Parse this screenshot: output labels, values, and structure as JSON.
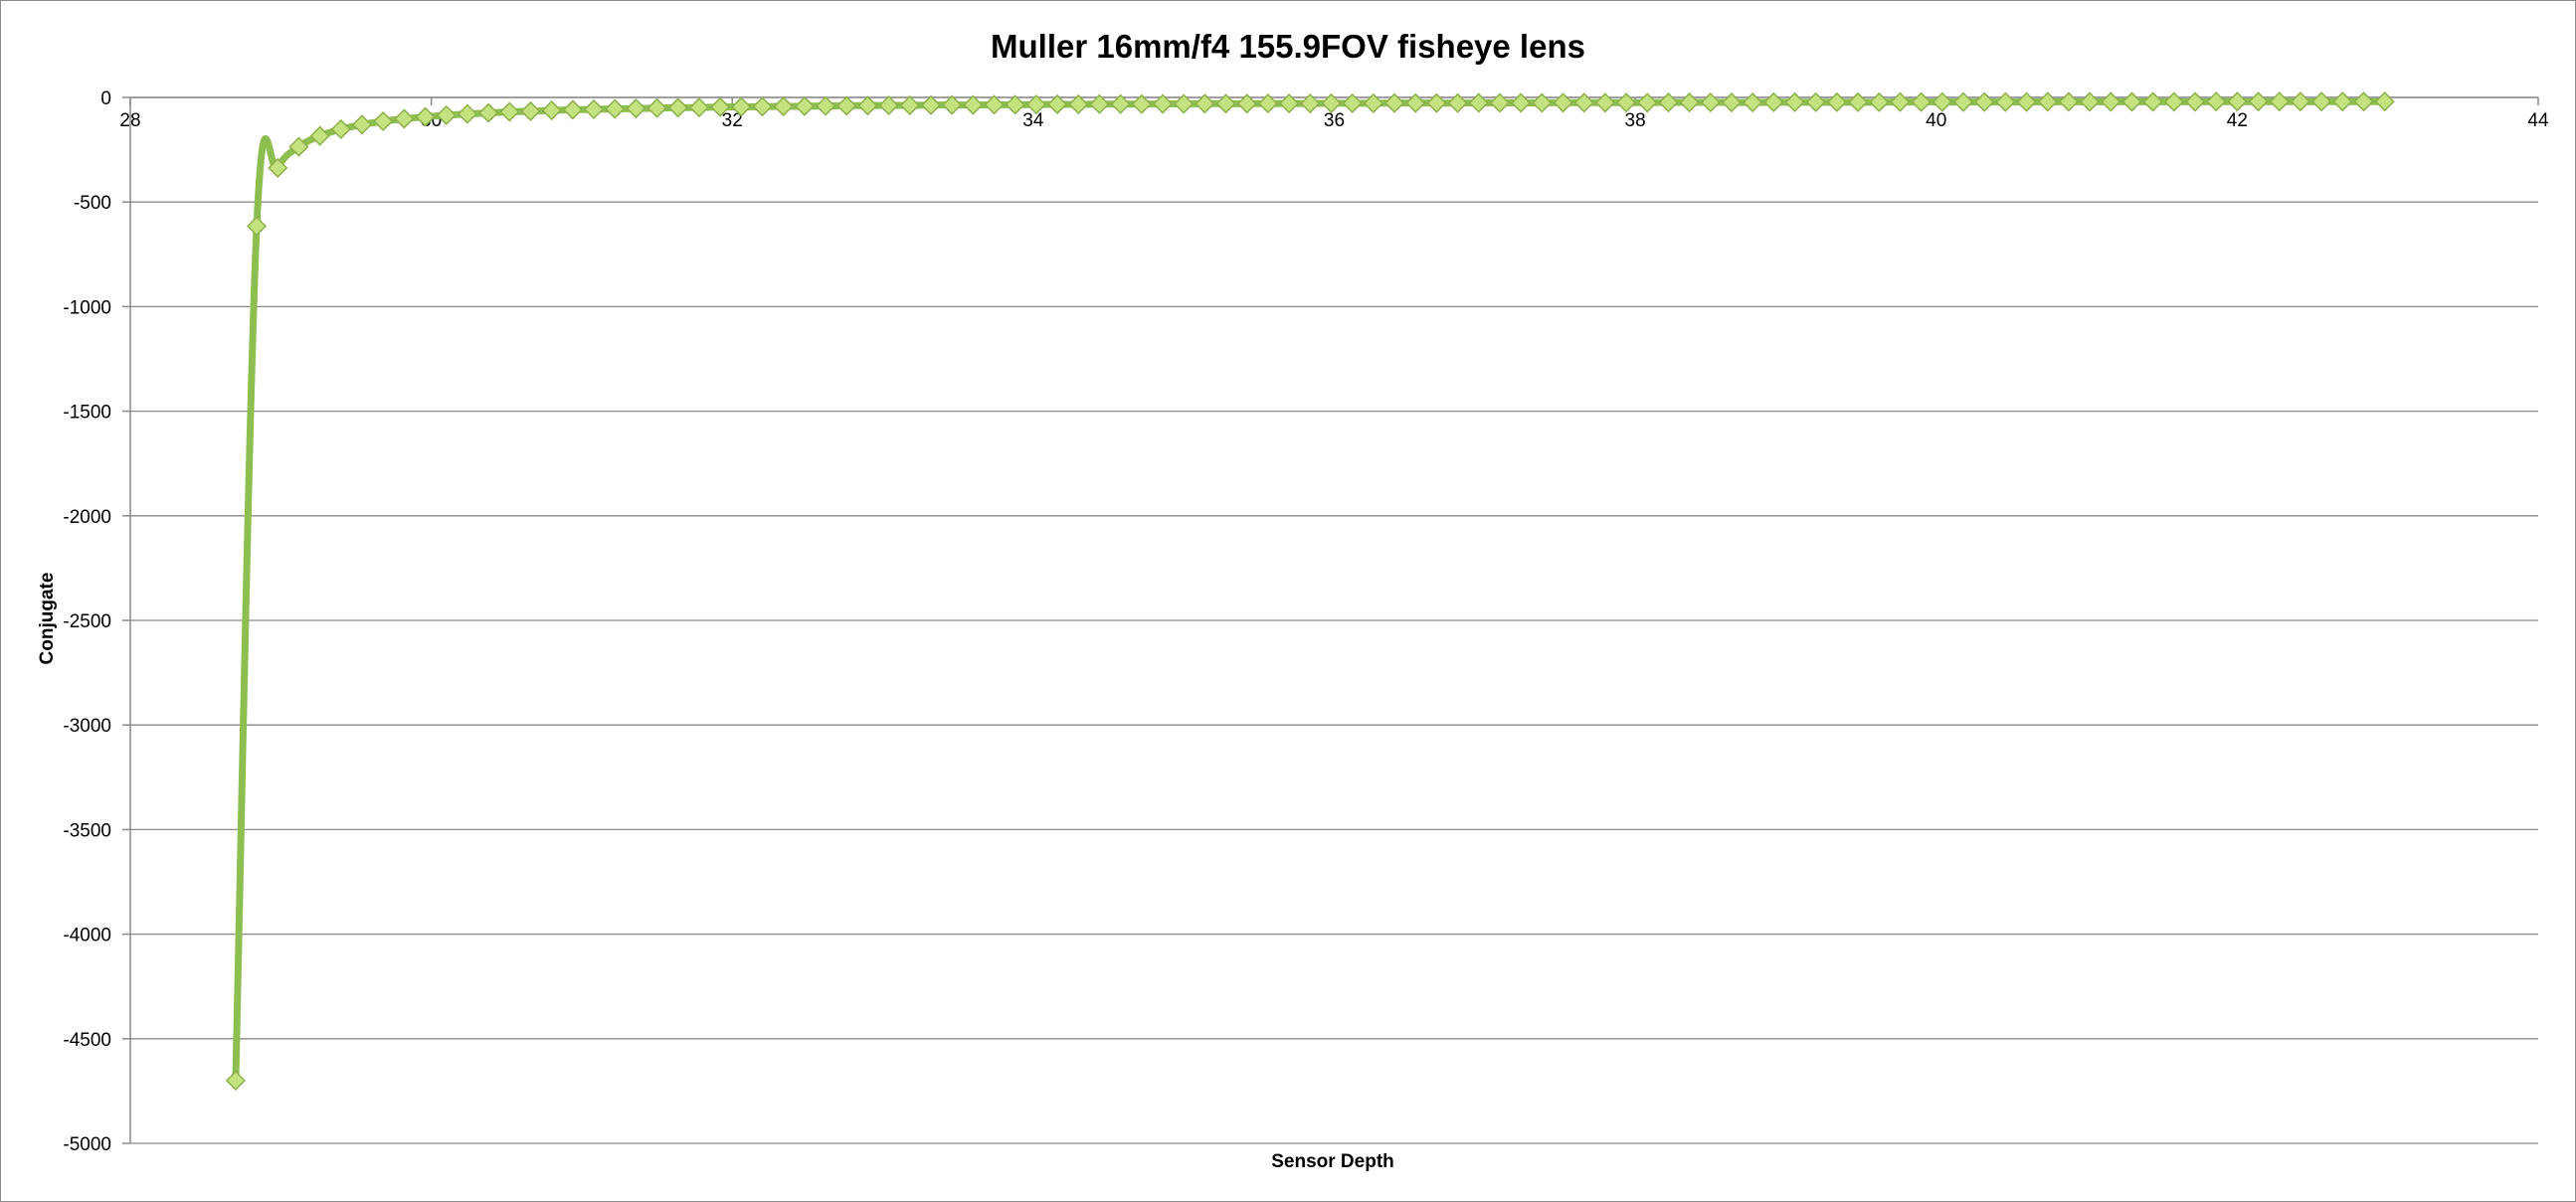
{
  "chart_data": {
    "type": "scatter",
    "title": "Muller 16mm/f4 155.9FOV fisheye lens",
    "xlabel": "Sensor Depth",
    "ylabel": "Conjugate",
    "xlim": [
      28,
      44
    ],
    "ylim": [
      -5000,
      0
    ],
    "xticks": [
      28,
      30,
      32,
      34,
      36,
      38,
      40,
      42,
      44
    ],
    "yticks": [
      0,
      -500,
      -1000,
      -1500,
      -2000,
      -2500,
      -3000,
      -3500,
      -4000,
      -4500,
      -5000
    ],
    "grid": "horizontal",
    "legend": "none",
    "colors": {
      "line": "#8cbf4f",
      "marker_fill": "#c4e27f",
      "marker_stroke": "#8cb04a"
    },
    "series": [
      {
        "x": [
          28.7,
          28.84,
          28.98,
          29.12,
          29.26,
          29.4,
          29.54,
          29.68,
          29.82,
          29.96,
          30.1,
          30.24,
          30.38,
          30.52,
          30.66,
          30.8,
          30.94,
          31.08,
          31.22,
          31.36,
          31.5,
          31.64,
          31.78,
          31.92,
          32.06,
          32.2,
          32.34,
          32.48,
          32.62,
          32.76,
          32.9,
          33.04,
          33.18,
          33.32,
          33.46,
          33.6,
          33.74,
          33.88,
          34.02,
          34.16,
          34.3,
          34.44,
          34.58,
          34.72,
          34.86,
          35.0,
          35.14,
          35.28,
          35.42,
          35.56,
          35.7,
          35.84,
          35.98,
          36.12,
          36.26,
          36.4,
          36.54,
          36.68,
          36.82,
          36.96,
          37.1,
          37.24,
          37.38,
          37.52,
          37.66,
          37.8,
          37.94,
          38.08,
          38.22,
          38.36,
          38.5,
          38.64,
          38.78,
          38.92,
          39.06,
          39.2,
          39.34,
          39.48,
          39.62,
          39.76,
          39.9,
          40.04,
          40.18,
          40.32,
          40.46,
          40.6,
          40.74,
          40.88,
          41.02,
          41.16,
          41.3,
          41.44,
          41.58,
          41.72,
          41.86,
          42.0,
          42.14,
          42.28,
          42.42,
          42.56,
          42.7,
          42.84,
          42.98
        ],
        "y": [
          -4700,
          -615,
          -337,
          -236,
          -184,
          -152,
          -130,
          -114,
          -102,
          -93,
          -85,
          -79,
          -74,
          -69,
          -66,
          -62,
          -59,
          -57,
          -55,
          -53,
          -51,
          -49,
          -48,
          -46,
          -45,
          -44,
          -43,
          -42,
          -41,
          -40,
          -39,
          -38,
          -38,
          -37,
          -36,
          -36,
          -35,
          -35,
          -34,
          -33,
          -33,
          -32,
          -32,
          -32,
          -31,
          -31,
          -30,
          -30,
          -30,
          -29,
          -29,
          -29,
          -28,
          -28,
          -28,
          -27,
          -27,
          -27,
          -27,
          -26,
          -26,
          -26,
          -26,
          -25,
          -25,
          -25,
          -25,
          -25,
          -24,
          -24,
          -24,
          -24,
          -24,
          -23,
          -23,
          -23,
          -23,
          -23,
          -23,
          -22,
          -22,
          -22,
          -22,
          -22,
          -22,
          -22,
          -21,
          -21,
          -21,
          -21,
          -21,
          -21,
          -21,
          -21,
          -20,
          -20,
          -20,
          -20,
          -20,
          -20,
          -20,
          -20,
          -20
        ]
      }
    ]
  }
}
